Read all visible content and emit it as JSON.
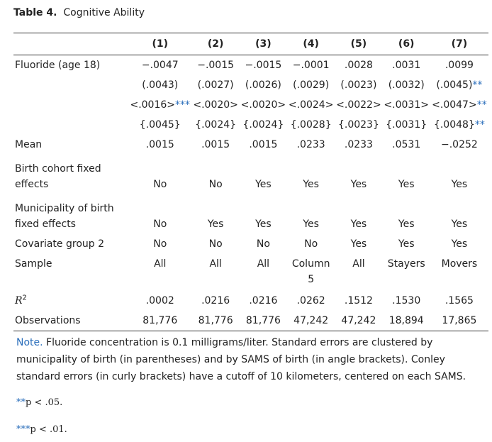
{
  "caption": {
    "label": "Table 4.",
    "title": "Cognitive Ability"
  },
  "columns": [
    "(1)",
    "(2)",
    "(3)",
    "(4)",
    "(5)",
    "(6)",
    "(7)"
  ],
  "fluoride": {
    "label": "Fluoride (age 18)",
    "coef": [
      "−.0047",
      "−.0015",
      "−.0015",
      "−.0001",
      ".0028",
      ".0031",
      ".0099"
    ],
    "se_paren": [
      {
        "v": "(.0043)",
        "s": ""
      },
      {
        "v": "(.0027)",
        "s": ""
      },
      {
        "v": "(.0026)",
        "s": ""
      },
      {
        "v": "(.0029)",
        "s": ""
      },
      {
        "v": "(.0023)",
        "s": ""
      },
      {
        "v": "(.0032)",
        "s": ""
      },
      {
        "v": "(.0045)",
        "s": "**"
      }
    ],
    "se_angle": [
      {
        "v": "<.0016>",
        "s": "***"
      },
      {
        "v": "<.0020>",
        "s": ""
      },
      {
        "v": "<.0020>",
        "s": ""
      },
      {
        "v": "<.0024>",
        "s": ""
      },
      {
        "v": "<.0022>",
        "s": ""
      },
      {
        "v": "<.0031>",
        "s": ""
      },
      {
        "v": "<.0047>",
        "s": "**"
      }
    ],
    "se_curly": [
      {
        "v": "{.0045}",
        "s": ""
      },
      {
        "v": "{.0024}",
        "s": ""
      },
      {
        "v": "{.0024}",
        "s": ""
      },
      {
        "v": "{.0028}",
        "s": ""
      },
      {
        "v": "{.0023}",
        "s": ""
      },
      {
        "v": "{.0031}",
        "s": ""
      },
      {
        "v": "{.0048}",
        "s": "**"
      }
    ]
  },
  "mean": {
    "label": "Mean",
    "values": [
      ".0015",
      ".0015",
      ".0015",
      ".0233",
      ".0233",
      ".0531",
      "−.0252"
    ]
  },
  "birth_cohort": {
    "label1": "Birth cohort fixed",
    "label2": "effects",
    "values": [
      "No",
      "No",
      "Yes",
      "Yes",
      "Yes",
      "Yes",
      "Yes"
    ]
  },
  "municipality": {
    "label1": "Municipality of birth",
    "label2": "fixed effects",
    "values": [
      "No",
      "Yes",
      "Yes",
      "Yes",
      "Yes",
      "Yes",
      "Yes"
    ]
  },
  "covariate": {
    "label": "Covariate group 2",
    "values": [
      "No",
      "No",
      "No",
      "No",
      "Yes",
      "Yes",
      "Yes"
    ]
  },
  "sample": {
    "label": "Sample",
    "values": [
      "All",
      "All",
      "All",
      "Column",
      "All",
      "Stayers",
      "Movers"
    ],
    "col4_line2": "5"
  },
  "r2": {
    "label": "R",
    "sup": "2",
    "values": [
      ".0002",
      ".0216",
      ".0216",
      ".0262",
      ".1512",
      ".1530",
      ".1565"
    ]
  },
  "observations": {
    "label": "Observations",
    "values": [
      "81,776",
      "81,776",
      "81,776",
      "47,242",
      "47,242",
      "18,894",
      "17,865"
    ]
  },
  "note": {
    "label": "Note.",
    "text": "Fluoride concentration is 0.1 milligrams/liter. Standard errors are clustered by municipality of birth (in parentheses) and by SAMS of birth (in angle brackets). Conley standard errors (in curly brackets) have a cutoff of 10 kilometers, centered on each SAMS."
  },
  "pnotes": [
    {
      "stars": "**",
      "text": "p < .05."
    },
    {
      "stars": "***",
      "text": "p < .01."
    }
  ]
}
